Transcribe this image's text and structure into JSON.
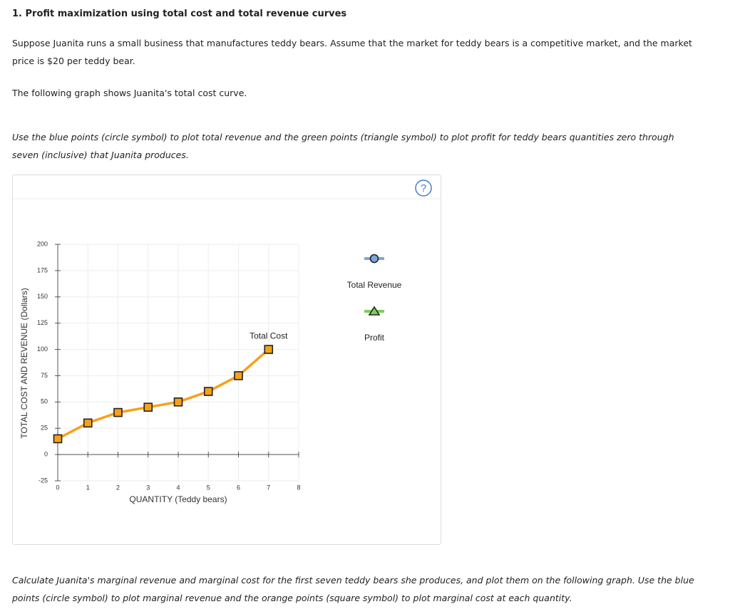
{
  "header": {
    "title": "1. Profit maximization using total cost and total revenue curves"
  },
  "paragraphs": [
    "Suppose Juanita runs a small business that manufactures teddy bears. Assume that the market for teddy bears is a competitive market, and the market price is $20 per teddy bear.",
    "The following graph shows Juanita's total cost curve.",
    "Use the blue points (circle symbol) to plot total revenue and the green points (triangle symbol) to plot profit for teddy bears quantities zero through seven (inclusive) that Juanita produces.",
    "Calculate Juanita's marginal revenue and marginal cost for the first seven teddy bears she produces, and plot them on the following graph. Use the blue points (circle symbol) to plot marginal revenue and the orange points (square symbol) to plot marginal cost at each quantity."
  ],
  "help_icon": "?",
  "chart_data": {
    "type": "line",
    "x_label": "QUANTITY (Teddy bears)",
    "y_label": "TOTAL COST AND REVENUE (Dollars)",
    "x": [
      0,
      1,
      2,
      3,
      4,
      5,
      6,
      7
    ],
    "series": [
      {
        "name": "Total Cost",
        "color": "#f7a11a",
        "values": [
          15,
          30,
          40,
          45,
          50,
          60,
          75,
          100
        ]
      }
    ],
    "xlim": [
      0,
      8
    ],
    "xticks": [
      0,
      1,
      2,
      3,
      4,
      5,
      6,
      7,
      8
    ],
    "ylim": [
      -25,
      200
    ],
    "yticks": [
      -25,
      0,
      25,
      50,
      75,
      100,
      125,
      150,
      175,
      200
    ],
    "grid": true,
    "tools": [
      {
        "name": "Total Revenue",
        "color": "#7da7d9",
        "marker": "circle"
      },
      {
        "name": "Profit",
        "color": "#7ccf5a",
        "marker": "triangle"
      }
    ]
  }
}
